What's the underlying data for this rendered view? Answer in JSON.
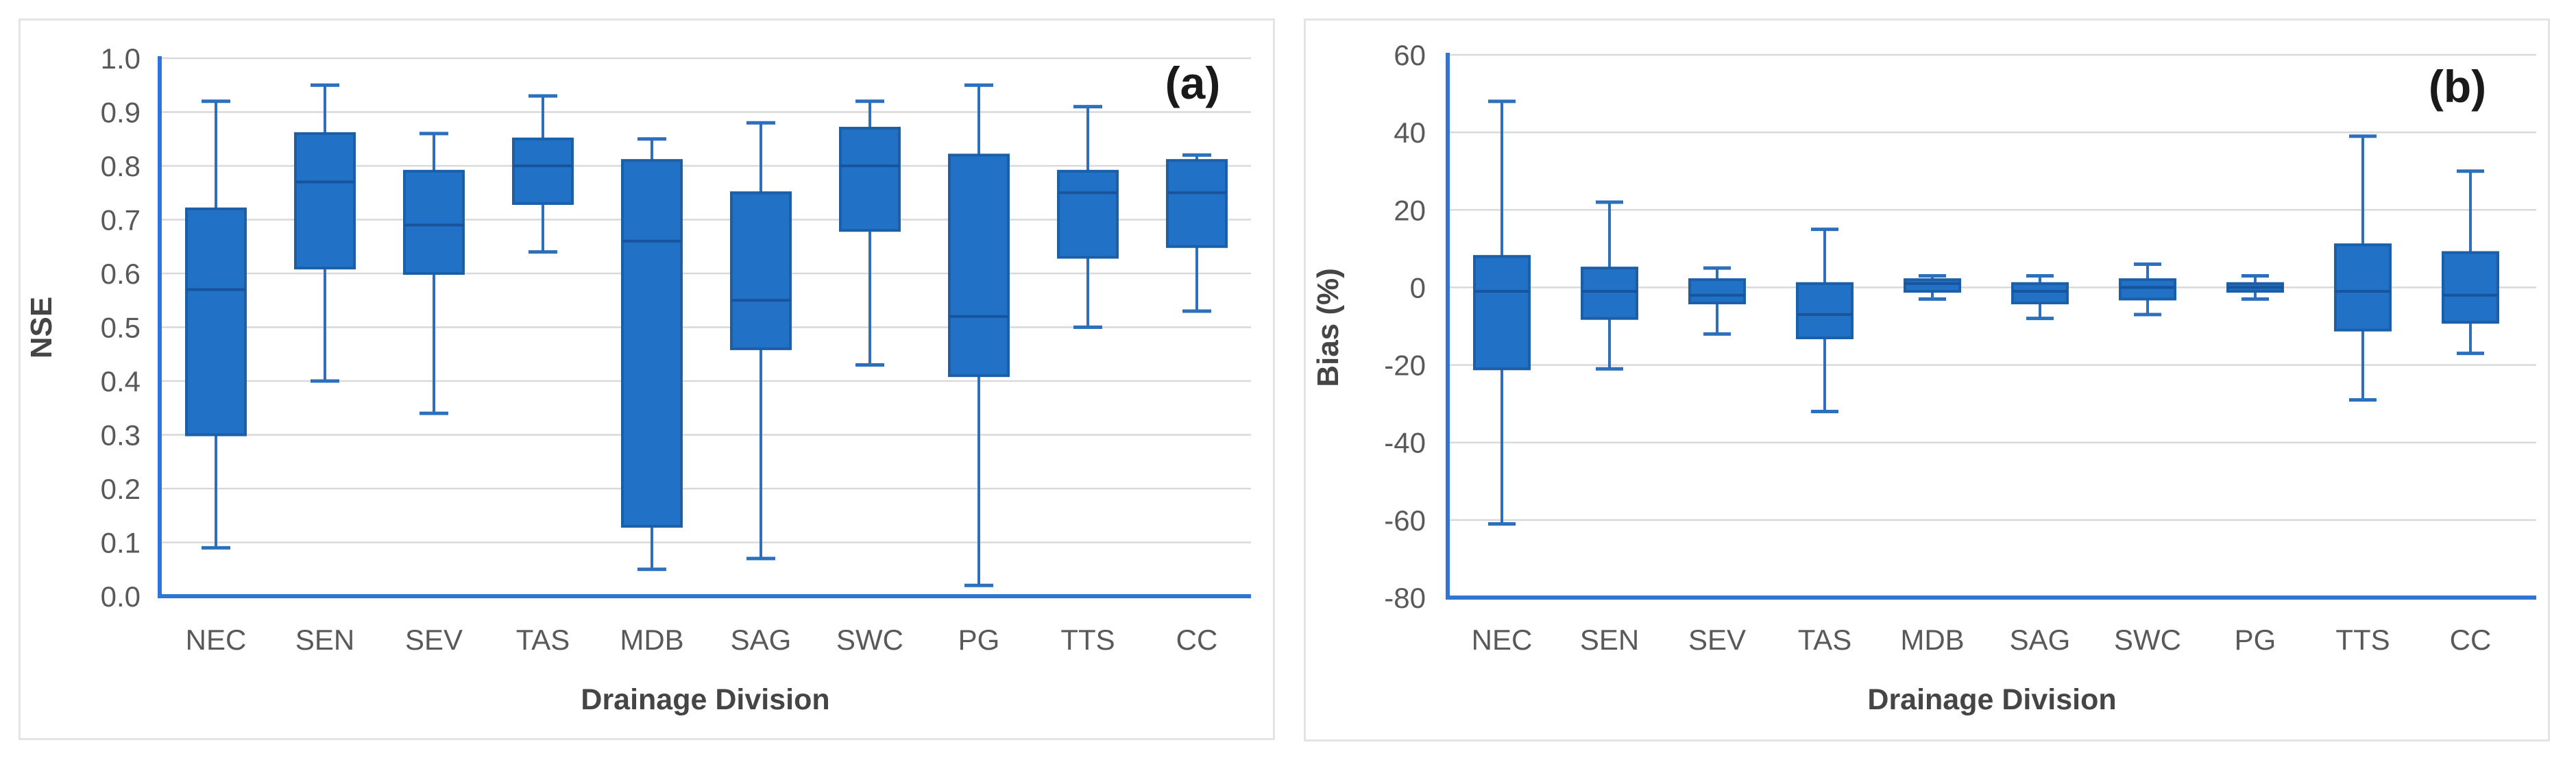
{
  "figure": {
    "panels": [
      {
        "id": "a",
        "letter_label": "(a)"
      },
      {
        "id": "b",
        "letter_label": "(b)"
      }
    ]
  },
  "colors": {
    "box_fill": "#2171c7",
    "box_border": "#1b5fa8",
    "median_line": "#17549b",
    "whisker_line": "#2c6fbc",
    "axis_line": "#2f74d8",
    "gridline": "#d9d9d9",
    "tick_text": "#595959",
    "axis_title_text": "#454545",
    "panel_letter_text": "#1a1a1a",
    "panel_border": "#e4e4e4"
  },
  "chart_data": [
    {
      "panel": "a",
      "type": "box",
      "panel_label": "(a)",
      "ylabel": "NSE",
      "xlabel": "Drainage Division",
      "ylim": [
        0.0,
        1.0
      ],
      "grid": true,
      "legend": "none",
      "yticks": [
        {
          "v": 1.0,
          "label": "1.0"
        },
        {
          "v": 0.9,
          "label": "0.9"
        },
        {
          "v": 0.8,
          "label": "0.8"
        },
        {
          "v": 0.7,
          "label": "0.7"
        },
        {
          "v": 0.6,
          "label": "0.6"
        },
        {
          "v": 0.5,
          "label": "0.5"
        },
        {
          "v": 0.4,
          "label": "0.4"
        },
        {
          "v": 0.3,
          "label": "0.3"
        },
        {
          "v": 0.2,
          "label": "0.2"
        },
        {
          "v": 0.1,
          "label": "0.1"
        },
        {
          "v": 0.0,
          "label": "0.0"
        }
      ],
      "categories": [
        "NEC",
        "SEN",
        "SEV",
        "TAS",
        "MDB",
        "SAG",
        "SWC",
        "PG",
        "TTS",
        "CC"
      ],
      "boxes": [
        {
          "category": "NEC",
          "whisker_low": 0.09,
          "q1": 0.3,
          "median": 0.57,
          "q3": 0.72,
          "whisker_high": 0.92
        },
        {
          "category": "SEN",
          "whisker_low": 0.4,
          "q1": 0.61,
          "median": 0.77,
          "q3": 0.86,
          "whisker_high": 0.95
        },
        {
          "category": "SEV",
          "whisker_low": 0.34,
          "q1": 0.6,
          "median": 0.69,
          "q3": 0.79,
          "whisker_high": 0.86
        },
        {
          "category": "TAS",
          "whisker_low": 0.64,
          "q1": 0.73,
          "median": 0.8,
          "q3": 0.85,
          "whisker_high": 0.93
        },
        {
          "category": "MDB",
          "whisker_low": 0.05,
          "q1": 0.13,
          "median": 0.66,
          "q3": 0.81,
          "whisker_high": 0.85
        },
        {
          "category": "SAG",
          "whisker_low": 0.07,
          "q1": 0.46,
          "median": 0.55,
          "q3": 0.75,
          "whisker_high": 0.88
        },
        {
          "category": "SWC",
          "whisker_low": 0.43,
          "q1": 0.68,
          "median": 0.8,
          "q3": 0.87,
          "whisker_high": 0.92
        },
        {
          "category": "PG",
          "whisker_low": 0.02,
          "q1": 0.41,
          "median": 0.52,
          "q3": 0.82,
          "whisker_high": 0.95
        },
        {
          "category": "TTS",
          "whisker_low": 0.5,
          "q1": 0.63,
          "median": 0.75,
          "q3": 0.79,
          "whisker_high": 0.91
        },
        {
          "category": "CC",
          "whisker_low": 0.53,
          "q1": 0.65,
          "median": 0.75,
          "q3": 0.81,
          "whisker_high": 0.82
        }
      ]
    },
    {
      "panel": "b",
      "type": "box",
      "panel_label": "(b)",
      "ylabel": "Bias (%)",
      "xlabel": "Drainage Division",
      "ylim": [
        -80,
        60
      ],
      "grid": true,
      "legend": "none",
      "yticks": [
        {
          "v": 60,
          "label": "60"
        },
        {
          "v": 40,
          "label": "40"
        },
        {
          "v": 20,
          "label": "20"
        },
        {
          "v": 0,
          "label": "0"
        },
        {
          "v": -20,
          "label": "-20"
        },
        {
          "v": -40,
          "label": "-40"
        },
        {
          "v": -60,
          "label": "-60"
        },
        {
          "v": -80,
          "label": "-80"
        }
      ],
      "categories": [
        "NEC",
        "SEN",
        "SEV",
        "TAS",
        "MDB",
        "SAG",
        "SWC",
        "PG",
        "TTS",
        "CC"
      ],
      "boxes": [
        {
          "category": "NEC",
          "whisker_low": -61,
          "q1": -21,
          "median": -1,
          "q3": 8,
          "whisker_high": 48
        },
        {
          "category": "SEN",
          "whisker_low": -21,
          "q1": -8,
          "median": -1,
          "q3": 5,
          "whisker_high": 22
        },
        {
          "category": "SEV",
          "whisker_low": -12,
          "q1": -4,
          "median": -2,
          "q3": 2,
          "whisker_high": 5
        },
        {
          "category": "TAS",
          "whisker_low": -32,
          "q1": -13,
          "median": -7,
          "q3": 1,
          "whisker_high": 15
        },
        {
          "category": "MDB",
          "whisker_low": -3,
          "q1": -1,
          "median": 1,
          "q3": 2,
          "whisker_high": 3
        },
        {
          "category": "SAG",
          "whisker_low": -8,
          "q1": -4,
          "median": -1,
          "q3": 1,
          "whisker_high": 3
        },
        {
          "category": "SWC",
          "whisker_low": -7,
          "q1": -3,
          "median": 0,
          "q3": 2,
          "whisker_high": 6
        },
        {
          "category": "PG",
          "whisker_low": -3,
          "q1": -1,
          "median": 0,
          "q3": 1,
          "whisker_high": 3
        },
        {
          "category": "TTS",
          "whisker_low": -29,
          "q1": -11,
          "median": -1,
          "q3": 11,
          "whisker_high": 39
        },
        {
          "category": "CC",
          "whisker_low": -17,
          "q1": -9,
          "median": -2,
          "q3": 9,
          "whisker_high": 30
        }
      ]
    }
  ]
}
